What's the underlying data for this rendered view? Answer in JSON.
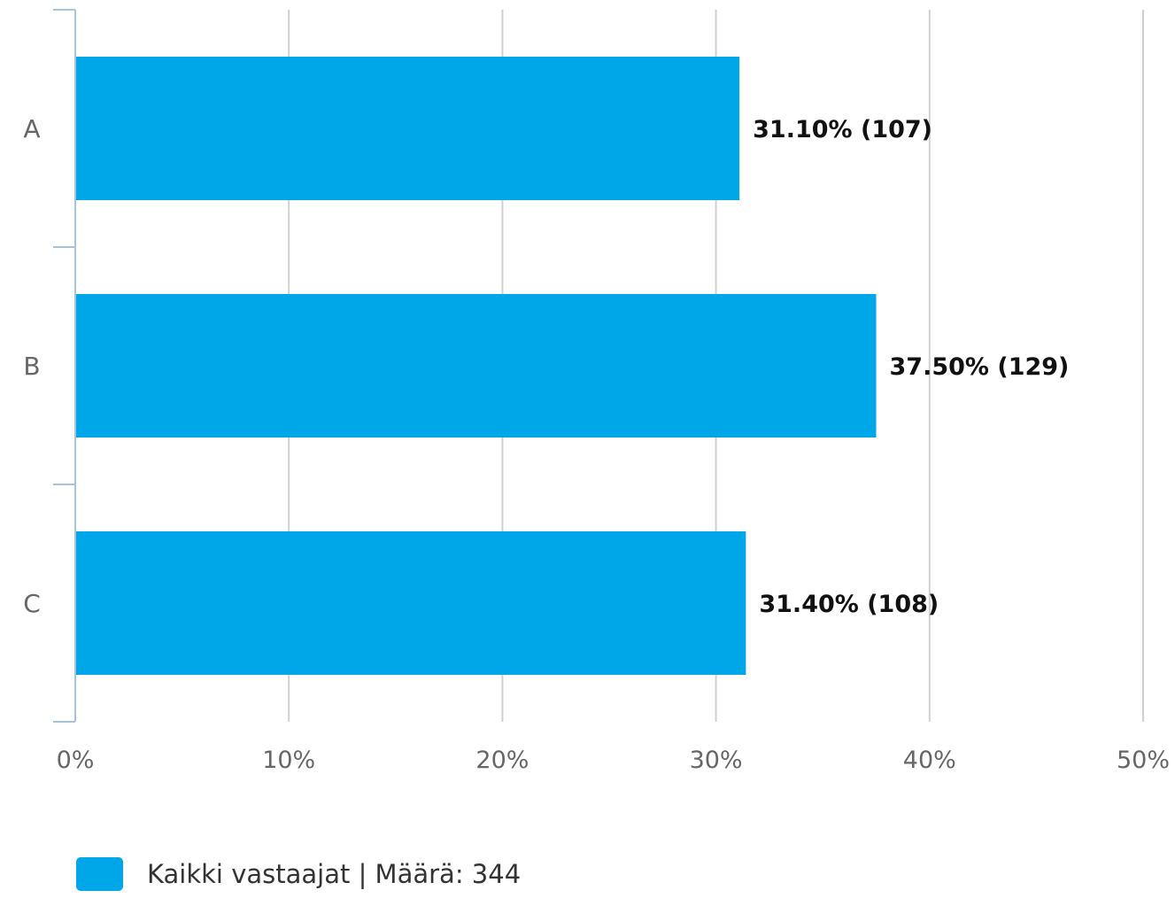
{
  "chart_data": {
    "type": "bar",
    "orientation": "horizontal",
    "categories": [
      "A",
      "B",
      "C"
    ],
    "series": [
      {
        "name": "Kaikki vastaajat | Määrä: 344",
        "values": [
          31.1,
          37.5,
          31.4
        ],
        "counts": [
          107,
          129,
          108
        ],
        "color": "#00a7e8"
      }
    ],
    "data_labels": [
      "31.10% (107)",
      "37.50% (129)",
      "31.40% (108)"
    ],
    "xlim": [
      0,
      50
    ],
    "x_ticks": [
      0,
      10,
      20,
      30,
      40,
      50
    ],
    "x_tick_labels": [
      "0%",
      "10%",
      "20%",
      "30%",
      "40%",
      "50%"
    ],
    "grid": true,
    "legend_position": "bottom-left",
    "title": "",
    "xlabel": "",
    "ylabel": ""
  },
  "legend": {
    "label": "Kaikki vastaajat | Määrä: 344",
    "color": "#00a7e8"
  }
}
